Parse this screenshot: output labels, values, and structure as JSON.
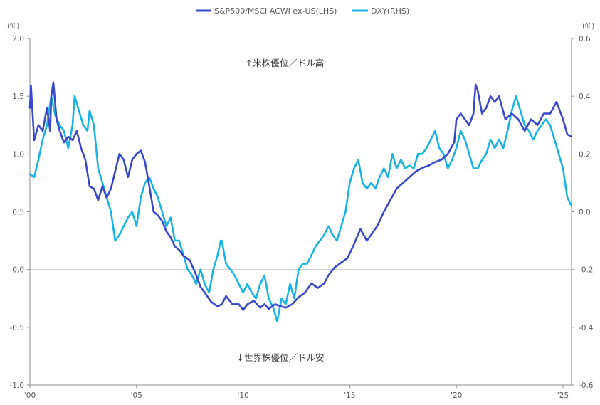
{
  "chart_data": {
    "type": "line",
    "title": "",
    "left_axis": {
      "unit_label": "(%)",
      "ylim": [
        -1.0,
        2.0
      ],
      "ticks": [
        "2.0",
        "1.5",
        "1.0",
        "0.5",
        "0.0",
        "-0.5",
        "-1.0"
      ]
    },
    "right_axis": {
      "unit_label": "(%)",
      "ylim": [
        -0.6,
        0.6
      ],
      "ticks": [
        "0.6",
        "0.4",
        "0.2",
        "0.0",
        "-0.2",
        "-0.4",
        "-0.6"
      ]
    },
    "x_axis": {
      "xlim": [
        2000.0,
        2025.4
      ],
      "ticks": [
        {
          "v": 2000,
          "label": "'00"
        },
        {
          "v": 2005,
          "label": "'05"
        },
        {
          "v": 2010,
          "label": "'10"
        },
        {
          "v": 2015,
          "label": "'15"
        },
        {
          "v": 2020,
          "label": "'20"
        },
        {
          "v": 2025,
          "label": "'25"
        }
      ]
    },
    "grid_y": false,
    "zero_line": true,
    "legend": {
      "placement": "top-center"
    },
    "annotations": {
      "upper": "↑米株優位／ドル高",
      "lower": "↓世界株優位／ドル安"
    },
    "colors": {
      "sp500": "#3a48cc",
      "dxy": "#19b4e3",
      "axis": "#8c8c8c",
      "zero": "#c8c8c8"
    },
    "series": [
      {
        "name": "S&P500/MSCI ACWI ex-US(LHS)",
        "axis": "left",
        "points": [
          [
            2000.0,
            1.4
          ],
          [
            2000.05,
            1.59
          ],
          [
            2000.2,
            1.12
          ],
          [
            2000.4,
            1.25
          ],
          [
            2000.6,
            1.2
          ],
          [
            2000.8,
            1.4
          ],
          [
            2000.95,
            1.2
          ],
          [
            2001.0,
            1.5
          ],
          [
            2001.1,
            1.62
          ],
          [
            2001.25,
            1.3
          ],
          [
            2001.4,
            1.2
          ],
          [
            2001.6,
            1.1
          ],
          [
            2001.8,
            1.15
          ],
          [
            2002.0,
            1.12
          ],
          [
            2002.2,
            1.2
          ],
          [
            2002.4,
            1.05
          ],
          [
            2002.6,
            0.95
          ],
          [
            2002.8,
            0.72
          ],
          [
            2003.0,
            0.7
          ],
          [
            2003.2,
            0.6
          ],
          [
            2003.4,
            0.72
          ],
          [
            2003.6,
            0.62
          ],
          [
            2003.8,
            0.7
          ],
          [
            2004.0,
            0.85
          ],
          [
            2004.2,
            1.0
          ],
          [
            2004.4,
            0.95
          ],
          [
            2004.6,
            0.8
          ],
          [
            2004.8,
            0.95
          ],
          [
            2005.0,
            1.0
          ],
          [
            2005.2,
            1.03
          ],
          [
            2005.4,
            0.93
          ],
          [
            2005.6,
            0.72
          ],
          [
            2005.8,
            0.5
          ],
          [
            2006.0,
            0.47
          ],
          [
            2006.2,
            0.42
          ],
          [
            2006.4,
            0.33
          ],
          [
            2006.6,
            0.28
          ],
          [
            2006.8,
            0.2
          ],
          [
            2007.0,
            0.17
          ],
          [
            2007.2,
            0.12
          ],
          [
            2007.5,
            0.08
          ],
          [
            2007.8,
            -0.05
          ],
          [
            2008.0,
            -0.15
          ],
          [
            2008.2,
            -0.2
          ],
          [
            2008.5,
            -0.28
          ],
          [
            2008.8,
            -0.32
          ],
          [
            2009.0,
            -0.3
          ],
          [
            2009.2,
            -0.23
          ],
          [
            2009.5,
            -0.3
          ],
          [
            2009.8,
            -0.3
          ],
          [
            2010.0,
            -0.35
          ],
          [
            2010.2,
            -0.3
          ],
          [
            2010.5,
            -0.27
          ],
          [
            2010.8,
            -0.33
          ],
          [
            2011.0,
            -0.3
          ],
          [
            2011.2,
            -0.34
          ],
          [
            2011.5,
            -0.3
          ],
          [
            2011.8,
            -0.32
          ],
          [
            2012.0,
            -0.33
          ],
          [
            2012.3,
            -0.3
          ],
          [
            2012.6,
            -0.24
          ],
          [
            2012.9,
            -0.2
          ],
          [
            2013.2,
            -0.12
          ],
          [
            2013.5,
            -0.16
          ],
          [
            2013.8,
            -0.12
          ],
          [
            2014.0,
            -0.05
          ],
          [
            2014.3,
            0.02
          ],
          [
            2014.6,
            0.06
          ],
          [
            2014.9,
            0.1
          ],
          [
            2015.2,
            0.22
          ],
          [
            2015.5,
            0.35
          ],
          [
            2015.8,
            0.25
          ],
          [
            2016.0,
            0.3
          ],
          [
            2016.3,
            0.38
          ],
          [
            2016.6,
            0.5
          ],
          [
            2016.9,
            0.6
          ],
          [
            2017.2,
            0.7
          ],
          [
            2017.5,
            0.75
          ],
          [
            2017.8,
            0.8
          ],
          [
            2018.1,
            0.85
          ],
          [
            2018.4,
            0.88
          ],
          [
            2018.7,
            0.9
          ],
          [
            2019.0,
            0.93
          ],
          [
            2019.3,
            0.95
          ],
          [
            2019.6,
            1.0
          ],
          [
            2019.9,
            1.1
          ],
          [
            2020.0,
            1.3
          ],
          [
            2020.2,
            1.35
          ],
          [
            2020.4,
            1.3
          ],
          [
            2020.6,
            1.25
          ],
          [
            2020.8,
            1.35
          ],
          [
            2020.9,
            1.6
          ],
          [
            2021.0,
            1.55
          ],
          [
            2021.2,
            1.35
          ],
          [
            2021.4,
            1.4
          ],
          [
            2021.6,
            1.5
          ],
          [
            2021.8,
            1.45
          ],
          [
            2022.0,
            1.5
          ],
          [
            2022.3,
            1.3
          ],
          [
            2022.6,
            1.35
          ],
          [
            2022.9,
            1.3
          ],
          [
            2023.2,
            1.2
          ],
          [
            2023.5,
            1.3
          ],
          [
            2023.8,
            1.25
          ],
          [
            2024.1,
            1.35
          ],
          [
            2024.4,
            1.35
          ],
          [
            2024.7,
            1.45
          ],
          [
            2025.0,
            1.3
          ],
          [
            2025.2,
            1.17
          ],
          [
            2025.4,
            1.15
          ]
        ]
      },
      {
        "name": "DXY(RHS)",
        "axis": "right",
        "points": [
          [
            2000.0,
            0.13
          ],
          [
            2000.2,
            0.12
          ],
          [
            2000.4,
            0.18
          ],
          [
            2000.6,
            0.25
          ],
          [
            2000.8,
            0.3
          ],
          [
            2001.0,
            0.4
          ],
          [
            2001.2,
            0.33
          ],
          [
            2001.4,
            0.3
          ],
          [
            2001.6,
            0.28
          ],
          [
            2001.8,
            0.22
          ],
          [
            2002.0,
            0.3
          ],
          [
            2002.1,
            0.4
          ],
          [
            2002.3,
            0.35
          ],
          [
            2002.5,
            0.3
          ],
          [
            2002.7,
            0.28
          ],
          [
            2002.8,
            0.35
          ],
          [
            2003.0,
            0.3
          ],
          [
            2003.2,
            0.15
          ],
          [
            2003.4,
            0.1
          ],
          [
            2003.6,
            0.05
          ],
          [
            2003.8,
            0.0
          ],
          [
            2004.0,
            -0.1
          ],
          [
            2004.2,
            -0.08
          ],
          [
            2004.4,
            -0.05
          ],
          [
            2004.6,
            -0.02
          ],
          [
            2004.8,
            0.0
          ],
          [
            2005.0,
            -0.05
          ],
          [
            2005.2,
            0.05
          ],
          [
            2005.4,
            0.1
          ],
          [
            2005.6,
            0.12
          ],
          [
            2005.8,
            0.08
          ],
          [
            2006.0,
            0.05
          ],
          [
            2006.2,
            0.0
          ],
          [
            2006.4,
            -0.05
          ],
          [
            2006.6,
            -0.02
          ],
          [
            2006.8,
            -0.1
          ],
          [
            2007.0,
            -0.1
          ],
          [
            2007.2,
            -0.15
          ],
          [
            2007.4,
            -0.2
          ],
          [
            2007.6,
            -0.22
          ],
          [
            2007.8,
            -0.25
          ],
          [
            2008.0,
            -0.2
          ],
          [
            2008.2,
            -0.25
          ],
          [
            2008.4,
            -0.28
          ],
          [
            2008.6,
            -0.2
          ],
          [
            2008.8,
            -0.15
          ],
          [
            2008.95,
            -0.1
          ],
          [
            2009.0,
            -0.1
          ],
          [
            2009.2,
            -0.18
          ],
          [
            2009.4,
            -0.2
          ],
          [
            2009.6,
            -0.22
          ],
          [
            2009.8,
            -0.25
          ],
          [
            2010.0,
            -0.28
          ],
          [
            2010.2,
            -0.25
          ],
          [
            2010.4,
            -0.28
          ],
          [
            2010.6,
            -0.3
          ],
          [
            2010.8,
            -0.25
          ],
          [
            2011.0,
            -0.22
          ],
          [
            2011.2,
            -0.3
          ],
          [
            2011.4,
            -0.33
          ],
          [
            2011.6,
            -0.38
          ],
          [
            2011.8,
            -0.3
          ],
          [
            2012.0,
            -0.32
          ],
          [
            2012.2,
            -0.25
          ],
          [
            2012.4,
            -0.3
          ],
          [
            2012.6,
            -0.2
          ],
          [
            2012.8,
            -0.18
          ],
          [
            2013.0,
            -0.18
          ],
          [
            2013.2,
            -0.15
          ],
          [
            2013.4,
            -0.12
          ],
          [
            2013.6,
            -0.1
          ],
          [
            2013.8,
            -0.08
          ],
          [
            2014.0,
            -0.05
          ],
          [
            2014.2,
            -0.08
          ],
          [
            2014.4,
            -0.1
          ],
          [
            2014.6,
            -0.05
          ],
          [
            2014.8,
            0.0
          ],
          [
            2015.0,
            0.1
          ],
          [
            2015.2,
            0.15
          ],
          [
            2015.4,
            0.18
          ],
          [
            2015.6,
            0.1
          ],
          [
            2015.8,
            0.08
          ],
          [
            2016.0,
            0.1
          ],
          [
            2016.2,
            0.08
          ],
          [
            2016.4,
            0.12
          ],
          [
            2016.6,
            0.15
          ],
          [
            2016.8,
            0.12
          ],
          [
            2017.0,
            0.2
          ],
          [
            2017.2,
            0.15
          ],
          [
            2017.4,
            0.18
          ],
          [
            2017.6,
            0.15
          ],
          [
            2017.8,
            0.16
          ],
          [
            2018.0,
            0.15
          ],
          [
            2018.2,
            0.2
          ],
          [
            2018.4,
            0.2
          ],
          [
            2018.6,
            0.22
          ],
          [
            2018.8,
            0.25
          ],
          [
            2019.0,
            0.28
          ],
          [
            2019.2,
            0.22
          ],
          [
            2019.4,
            0.2
          ],
          [
            2019.6,
            0.15
          ],
          [
            2019.8,
            0.18
          ],
          [
            2020.0,
            0.22
          ],
          [
            2020.2,
            0.28
          ],
          [
            2020.4,
            0.25
          ],
          [
            2020.6,
            0.2
          ],
          [
            2020.8,
            0.15
          ],
          [
            2021.0,
            0.15
          ],
          [
            2021.2,
            0.18
          ],
          [
            2021.4,
            0.2
          ],
          [
            2021.6,
            0.25
          ],
          [
            2021.8,
            0.22
          ],
          [
            2022.0,
            0.25
          ],
          [
            2022.2,
            0.22
          ],
          [
            2022.4,
            0.28
          ],
          [
            2022.6,
            0.35
          ],
          [
            2022.8,
            0.4
          ],
          [
            2023.0,
            0.35
          ],
          [
            2023.2,
            0.3
          ],
          [
            2023.4,
            0.28
          ],
          [
            2023.6,
            0.25
          ],
          [
            2023.8,
            0.28
          ],
          [
            2024.0,
            0.3
          ],
          [
            2024.2,
            0.32
          ],
          [
            2024.4,
            0.3
          ],
          [
            2024.6,
            0.25
          ],
          [
            2024.8,
            0.2
          ],
          [
            2025.0,
            0.15
          ],
          [
            2025.2,
            0.05
          ],
          [
            2025.4,
            0.02
          ]
        ]
      }
    ]
  }
}
